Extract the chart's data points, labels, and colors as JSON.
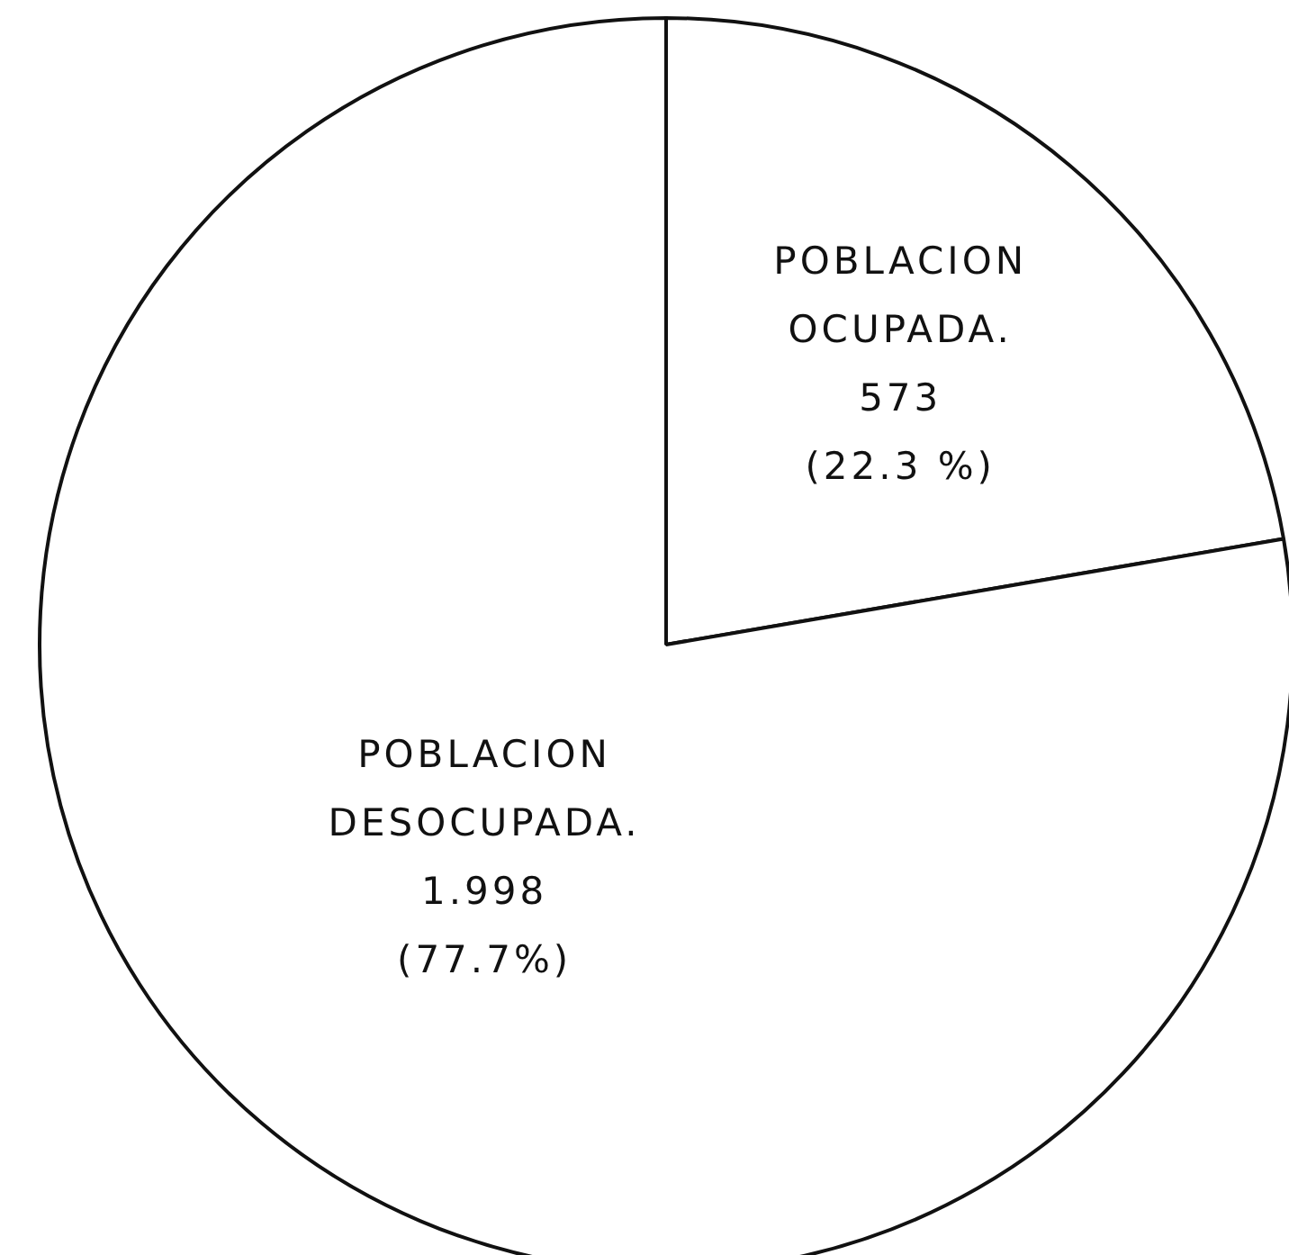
{
  "chart_data": {
    "type": "pie",
    "categories": [
      "POBLACION OCUPADA.",
      "POBLACION DESOCUPADA."
    ],
    "values": [
      22.3,
      77.7
    ],
    "colors": [
      "#ffffff",
      "#ffffff"
    ],
    "value_labels": [
      "573\n(22.3 %)",
      "1.998\n(77.7%)"
    ],
    "legend": false
  }
}
